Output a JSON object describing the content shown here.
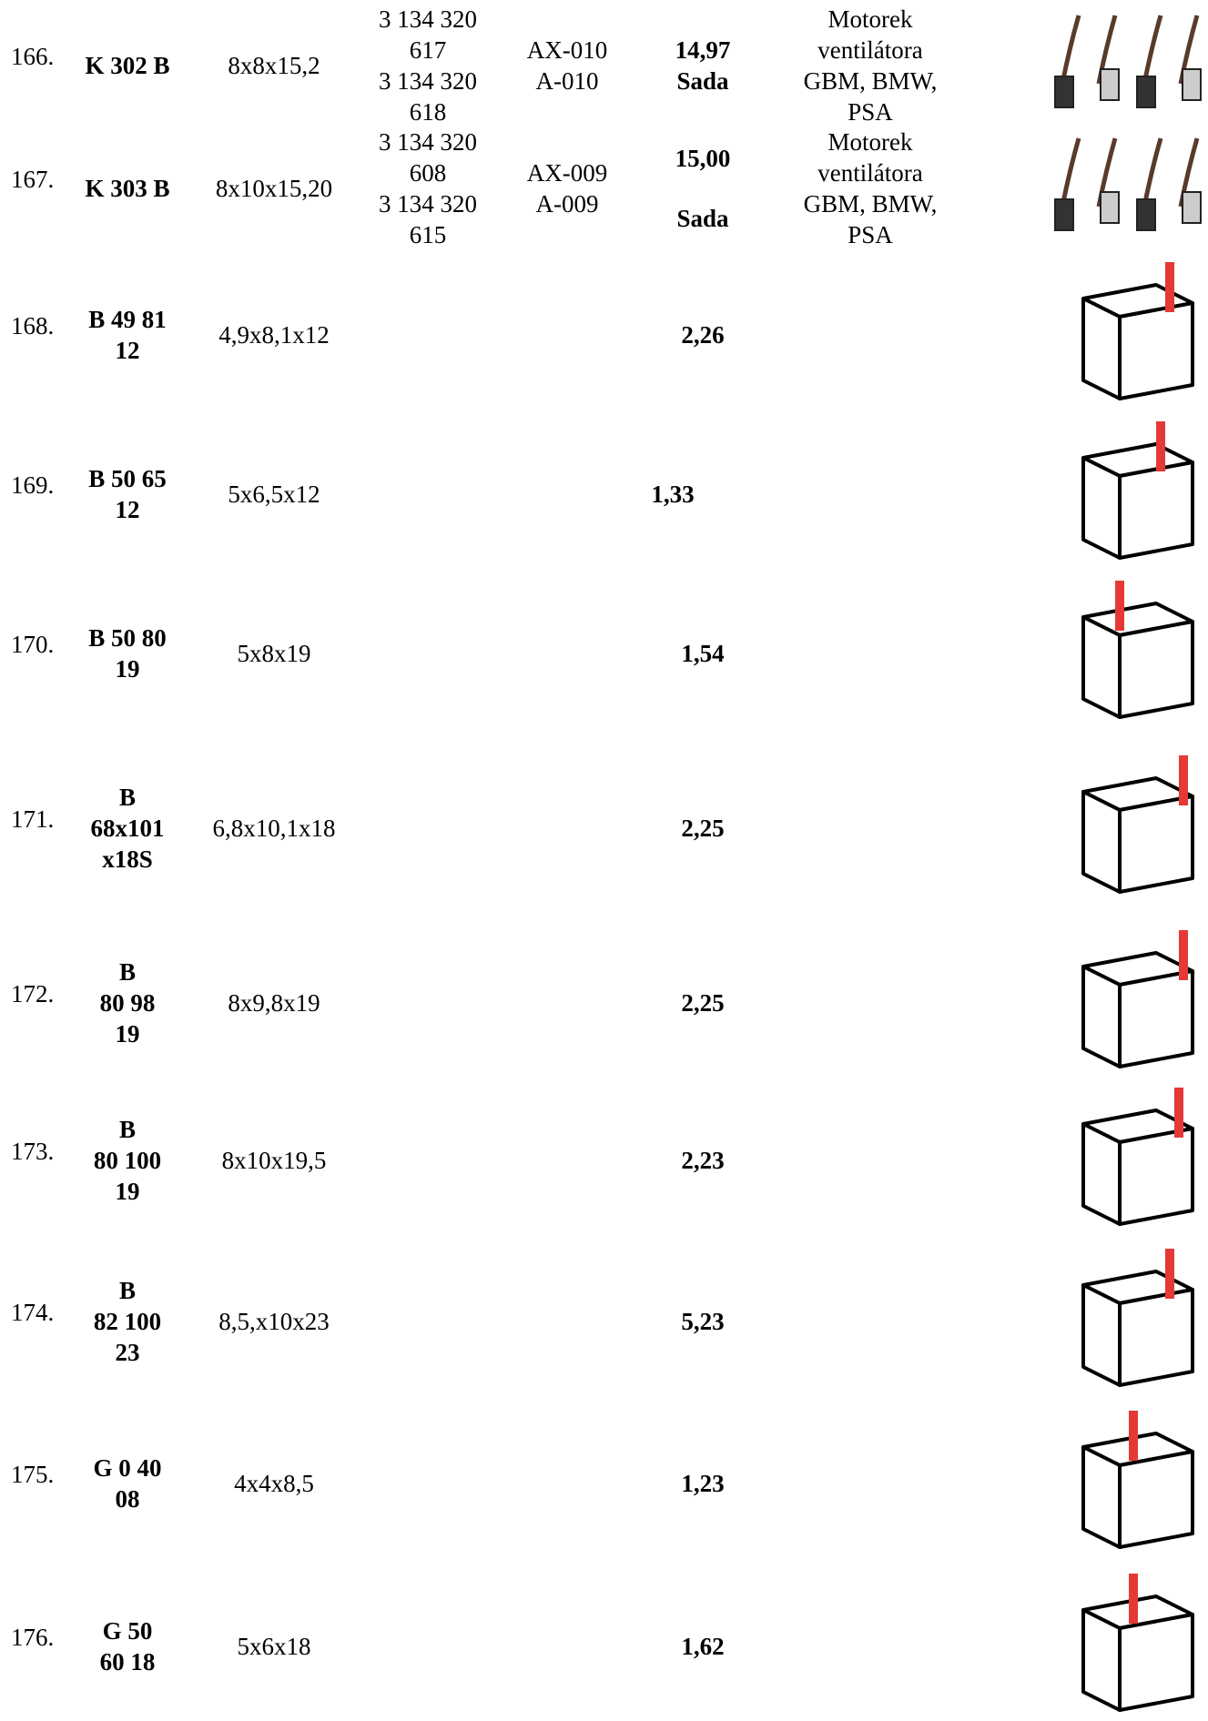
{
  "rows": [
    {
      "number": "166.",
      "code": [
        "K 302 B"
      ],
      "dims": [
        "8x8x15,2"
      ],
      "oe": [
        "3 134 320",
        "617",
        "3 134 320",
        "618"
      ],
      "ref": [
        "AX-010",
        "A-010"
      ],
      "price": [
        "14,97",
        "Sada"
      ],
      "note": [
        "Motorek",
        "ventilátora",
        "GBM, BMW,",
        "PSA"
      ]
    },
    {
      "number": "167.",
      "code": [
        "K 303 B"
      ],
      "dims": [
        "8x10x15,20"
      ],
      "oe": [
        "3 134 320",
        "608",
        "3 134 320",
        "615"
      ],
      "ref": [
        "AX-009",
        "A-009"
      ],
      "price": [
        "15,00",
        "Sada"
      ],
      "note": [
        "Motorek",
        "ventilátora",
        "GBM, BMW,",
        "PSA"
      ]
    },
    {
      "number": "168.",
      "code": [
        "B 49 81",
        "12"
      ],
      "dims": [
        "4,9x8,1x12"
      ],
      "price": [
        "2,26"
      ]
    },
    {
      "number": "169.",
      "code": [
        "B 50 65",
        "12"
      ],
      "dims": [
        "5x6,5x12"
      ],
      "price": [
        "1,33"
      ]
    },
    {
      "number": "170.",
      "code": [
        "B 50 80",
        "19"
      ],
      "dims": [
        "5x8x19"
      ],
      "price": [
        "1,54"
      ]
    },
    {
      "number": "171.",
      "code": [
        "B",
        "68x101",
        "x18S"
      ],
      "dims": [
        "6,8x10,1x18"
      ],
      "price": [
        "2,25"
      ]
    },
    {
      "number": "172.",
      "code": [
        "B",
        "80 98",
        "19"
      ],
      "dims": [
        "8x9,8x19"
      ],
      "price": [
        "2,25"
      ]
    },
    {
      "number": "173.",
      "code": [
        "B",
        "80 100",
        "19"
      ],
      "dims": [
        "8x10x19,5"
      ],
      "price": [
        "2,23"
      ]
    },
    {
      "number": "174.",
      "code": [
        "B",
        "82 100",
        "23"
      ],
      "dims": [
        "8,5,x10x23"
      ],
      "price": [
        "5,23"
      ]
    },
    {
      "number": "175.",
      "code": [
        "G 0 40",
        "08"
      ],
      "dims": [
        "4x4x8,5"
      ],
      "price": [
        "1,23"
      ]
    },
    {
      "number": "176.",
      "code": [
        "G 50",
        "60 18"
      ],
      "dims": [
        "5x6x18"
      ],
      "price": [
        "1,62"
      ]
    }
  ]
}
